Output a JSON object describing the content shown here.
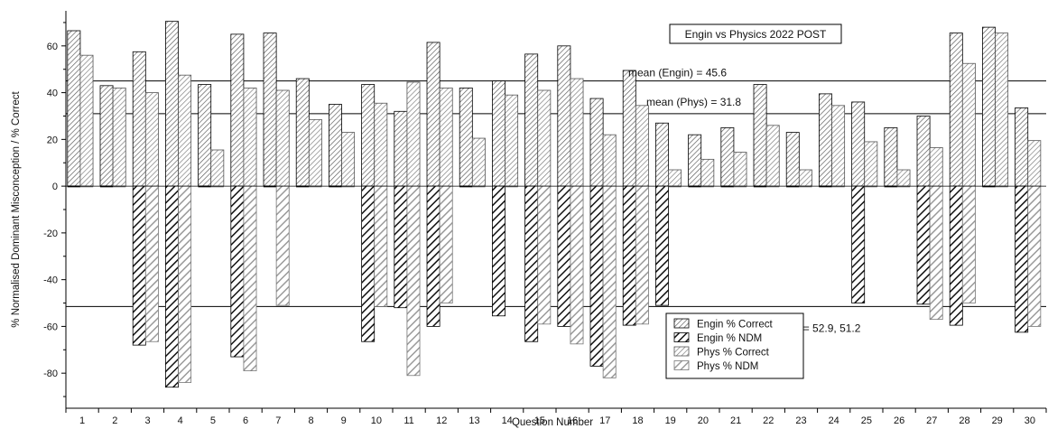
{
  "chart_data": {
    "type": "bar",
    "title": "Engin vs Physics 2022 POST",
    "xlabel": "Question Number",
    "ylabel": "% Normalised Dominant Misconception / % Correct",
    "ylim": [
      -95,
      75
    ],
    "yticks": [
      -80,
      -60,
      -40,
      -20,
      0,
      20,
      40,
      60
    ],
    "categories": [
      "1",
      "2",
      "3",
      "4",
      "5",
      "6",
      "7",
      "8",
      "9",
      "10",
      "11",
      "12",
      "13",
      "14",
      "15",
      "16",
      "17",
      "18",
      "19",
      "20",
      "21",
      "22",
      "23",
      "24",
      "25",
      "26",
      "27",
      "28",
      "29",
      "30"
    ],
    "series": [
      {
        "name": "Engin % Correct",
        "color": "#6e6e6e",
        "pattern": "hatch-light-dark",
        "values": [
          66.5,
          43,
          57.5,
          70.5,
          43.5,
          65,
          65.5,
          46,
          35,
          43.5,
          32,
          61.5,
          42,
          45,
          56.5,
          60,
          37.5,
          49.5,
          27,
          22,
          25,
          43.5,
          23,
          39.5,
          36,
          25,
          30,
          65.5,
          68,
          33.5
        ]
      },
      {
        "name": "Engin % NDM",
        "color": "#1a1a1a",
        "pattern": "hatch-heavy-dark",
        "values": [
          0,
          0,
          -68,
          -86,
          0,
          -73,
          0,
          0,
          0,
          -66.5,
          -52,
          -60,
          0,
          -55.5,
          -66.5,
          -60,
          -77,
          -59.5,
          -51,
          0,
          0,
          0,
          0,
          0,
          -50,
          0,
          -50.5,
          -59.5,
          0,
          -62.5
        ]
      },
      {
        "name": "Phys % Correct",
        "color": "#8a8a8a",
        "pattern": "hatch-light-gray",
        "values": [
          56,
          42,
          40,
          47.5,
          15.5,
          42,
          41,
          28.5,
          23,
          35.5,
          44.5,
          42,
          20.5,
          39,
          41,
          46,
          22,
          34.5,
          7,
          11.5,
          14.5,
          26,
          7,
          34.5,
          19,
          7,
          16.5,
          52.5,
          65.5,
          19.5
        ]
      },
      {
        "name": "Phys % NDM",
        "color": "#a8a8a8",
        "pattern": "hatch-heavy-gray",
        "values": [
          0,
          0,
          -66.5,
          -84,
          0,
          -79,
          -51,
          0,
          0,
          -51.5,
          -81,
          -50,
          0,
          0,
          -59,
          -67.5,
          -82,
          -59,
          0,
          0,
          0,
          0,
          0,
          0,
          0,
          0,
          -57,
          -50,
          0,
          -60
        ]
      }
    ],
    "reference_lines": [
      {
        "value": 45,
        "label": "mean (Engin) = 45.6"
      },
      {
        "value": 31,
        "label": "mean (Phys) = 31.8"
      },
      {
        "value": -51.5,
        "label": "mean (Engin, Phys) = 52.9, 51.2"
      }
    ],
    "legend_position": "bottom-right",
    "grid": false
  }
}
